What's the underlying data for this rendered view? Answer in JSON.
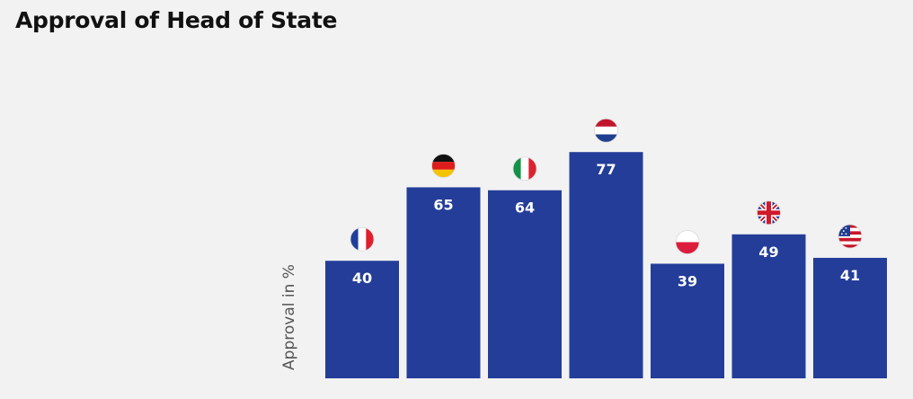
{
  "chart_data": {
    "type": "bar",
    "title": "Approval of Head of State",
    "ylabel": "Approval in %",
    "xlabel": "",
    "categories": [
      "France",
      "Germany",
      "Italy",
      "Netherlands",
      "Poland",
      "United Kingdom",
      "United States"
    ],
    "flag_icons": [
      "flag-france-icon",
      "flag-germany-icon",
      "flag-italy-icon",
      "flag-netherlands-icon",
      "flag-poland-icon",
      "flag-uk-icon",
      "flag-usa-icon"
    ],
    "values": [
      40,
      65,
      64,
      77,
      39,
      49,
      41
    ],
    "ylim": [
      0,
      100
    ],
    "grid": false,
    "bar_color": "#233d99",
    "label_color": "#ffffff"
  }
}
